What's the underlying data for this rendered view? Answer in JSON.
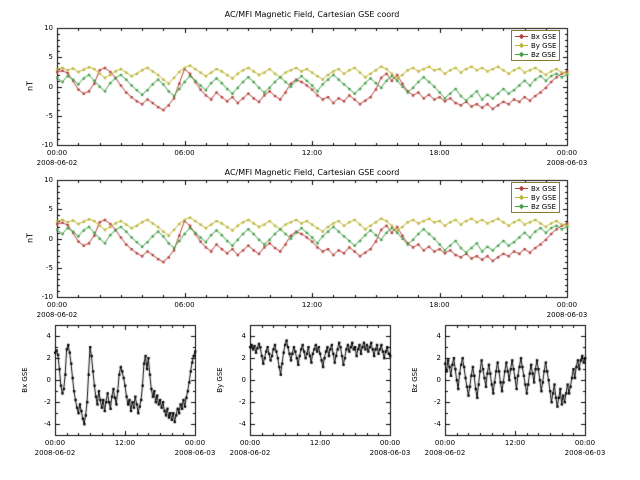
{
  "series": {
    "time": {
      "start_hours": 0,
      "end_hours": 24,
      "step_hours": 0.25
    },
    "bx": [
      2.5,
      2.7,
      2.3,
      1.0,
      -0.5,
      -1.2,
      -0.8,
      0.5,
      2.8,
      3.2,
      2.5,
      1.5,
      0.2,
      -1.0,
      -1.8,
      -2.5,
      -3.0,
      -2.2,
      -2.8,
      -3.5,
      -4.0,
      -3.2,
      -2.0,
      0.5,
      3.0,
      2.2,
      0.8,
      -0.5,
      -1.5,
      -2.2,
      -1.0,
      -1.8,
      -2.5,
      -1.8,
      -2.8,
      -2.0,
      -1.2,
      -2.0,
      -2.6,
      -1.5,
      -0.8,
      -1.6,
      -2.2,
      -1.0,
      0.5,
      1.2,
      0.8,
      0.2,
      -0.5,
      -1.5,
      -2.2,
      -1.8,
      -2.8,
      -2.0,
      -2.5,
      -1.5,
      -2.2,
      -3.0,
      -2.4,
      -1.8,
      -0.5,
      1.5,
      2.2,
      1.0,
      2.0,
      0.5,
      -0.8,
      -1.5,
      -1.0,
      -2.0,
      -1.4,
      -2.2,
      -1.8,
      -2.5,
      -2.0,
      -2.8,
      -3.2,
      -2.6,
      -3.4,
      -3.0,
      -3.6,
      -3.0,
      -3.8,
      -3.2,
      -2.6,
      -3.0,
      -2.2,
      -2.6,
      -1.8,
      -2.4,
      -1.6,
      -1.0,
      -0.2,
      0.8,
      1.6,
      2.2,
      2.6
    ],
    "by": [
      3.0,
      3.2,
      2.8,
      3.1,
      2.5,
      2.9,
      3.3,
      3.0,
      2.2,
      1.5,
      2.0,
      2.6,
      3.0,
      2.4,
      1.8,
      2.2,
      2.8,
      3.2,
      2.6,
      2.0,
      1.2,
      0.5,
      1.5,
      2.5,
      3.2,
      3.6,
      3.0,
      2.4,
      1.8,
      2.4,
      3.0,
      2.6,
      2.0,
      1.4,
      2.2,
      2.8,
      3.2,
      2.6,
      2.0,
      2.4,
      3.0,
      2.2,
      1.6,
      2.4,
      2.8,
      3.2,
      2.6,
      3.0,
      2.4,
      1.8,
      1.2,
      2.0,
      2.6,
      3.0,
      2.2,
      2.8,
      3.2,
      2.4,
      1.6,
      2.2,
      2.8,
      3.4,
      3.0,
      2.2,
      1.4,
      2.0,
      2.8,
      3.2,
      2.6,
      3.0,
      3.4,
      2.8,
      3.0,
      2.2,
      2.8,
      3.2,
      2.4,
      3.0,
      3.4,
      2.8,
      3.2,
      2.6,
      3.0,
      3.4,
      2.8,
      2.2,
      2.8,
      3.2,
      2.4,
      2.8,
      3.2,
      2.6,
      2.0,
      2.6,
      3.0,
      2.4,
      2.2
    ],
    "bz": [
      1.5,
      0.8,
      1.8,
      1.2,
      0.4,
      1.4,
      2.0,
      1.0,
      0.0,
      -0.8,
      0.6,
      1.4,
      2.0,
      1.2,
      0.2,
      -0.6,
      -1.4,
      -0.6,
      0.4,
      1.2,
      0.4,
      -0.8,
      -1.6,
      -0.4,
      0.8,
      1.8,
      1.0,
      0.2,
      -0.6,
      0.6,
      1.4,
      0.6,
      -0.4,
      -1.2,
      -0.2,
      0.8,
      1.6,
      0.8,
      -0.2,
      -1.0,
      -0.2,
      0.8,
      1.6,
      0.8,
      0.0,
      1.0,
      1.8,
      1.0,
      0.2,
      -0.8,
      0.4,
      1.2,
      2.0,
      1.2,
      0.4,
      -0.4,
      -1.2,
      -0.4,
      0.6,
      1.4,
      0.6,
      -0.2,
      1.0,
      1.8,
      1.0,
      0.0,
      -1.0,
      -0.2,
      0.8,
      1.6,
      0.8,
      0.0,
      -1.0,
      -2.0,
      -1.2,
      -0.4,
      -1.6,
      -2.4,
      -1.6,
      -0.8,
      -2.2,
      -1.4,
      -2.0,
      -1.2,
      -0.4,
      -1.2,
      -0.6,
      0.2,
      1.0,
      0.2,
      1.2,
      1.8,
      1.0,
      1.8,
      2.2,
      1.6,
      2.0
    ]
  },
  "chart_data": [
    {
      "id": "overview-1",
      "type": "line",
      "title": "AC/MFI  Magnetic Field, Cartesian GSE coord",
      "ylabel": "nT",
      "ylim": [
        -10,
        10
      ],
      "yticks": [
        10,
        5,
        0,
        -5,
        -10
      ],
      "xlim_hours": [
        0,
        24
      ],
      "xticks": [
        {
          "hour": 0,
          "label": "00:00",
          "date": "2008-06-02"
        },
        {
          "hour": 6,
          "label": "06:00"
        },
        {
          "hour": 12,
          "label": "12:00"
        },
        {
          "hour": 18,
          "label": "18:00"
        },
        {
          "hour": 24,
          "label": "00:00",
          "date": "2008-06-03"
        }
      ],
      "series": [
        {
          "key": "bx",
          "label": "Bx  GSE",
          "color": "#b5413d"
        },
        {
          "key": "by",
          "label": "By  GSE",
          "color": "#bdb534"
        },
        {
          "key": "bz",
          "label": "Bz  GSE",
          "color": "#44a049"
        }
      ],
      "legend_position": "top-right",
      "grid": false
    },
    {
      "id": "overview-2",
      "type": "line",
      "title": "AC/MFI  Magnetic Field, Cartesian GSE coord",
      "ylabel": "nT",
      "ylim": [
        -10,
        10
      ],
      "yticks": [
        10,
        5,
        0,
        -5,
        -10
      ],
      "xlim_hours": [
        0,
        24
      ],
      "xticks": [
        {
          "hour": 0,
          "label": "00:00",
          "date": "2008-06-02"
        },
        {
          "hour": 6,
          "label": "06:00"
        },
        {
          "hour": 12,
          "label": "12:00"
        },
        {
          "hour": 18,
          "label": "18:00"
        },
        {
          "hour": 24,
          "label": "00:00",
          "date": "2008-06-03"
        }
      ],
      "series": [
        {
          "key": "bx",
          "label": "Bx  GSE",
          "color": "#b5413d"
        },
        {
          "key": "by",
          "label": "By  GSE",
          "color": "#bdb534"
        },
        {
          "key": "bz",
          "label": "Bz  GSE",
          "color": "#44a049"
        }
      ],
      "legend_position": "top-right",
      "grid": false
    },
    {
      "id": "bx-panel",
      "type": "line",
      "title": "",
      "ylabel": "Bx GSE",
      "ylim": [
        -5,
        5
      ],
      "yticks": [
        4,
        2,
        0,
        -2,
        -4
      ],
      "xlim_hours": [
        0,
        24
      ],
      "xticks": [
        {
          "hour": 0,
          "label": "00:00",
          "date": "2008-06-02"
        },
        {
          "hour": 12,
          "label": "12:00"
        },
        {
          "hour": 24,
          "label": "00:00",
          "date": "2008-06-03"
        }
      ],
      "series": [
        {
          "key": "bx",
          "label": "Bx GSE",
          "color": "#000000"
        }
      ],
      "legend_position": null,
      "grid": false
    },
    {
      "id": "by-panel",
      "type": "line",
      "title": "",
      "ylabel": "By GSE",
      "ylim": [
        -5,
        5
      ],
      "yticks": [
        4,
        2,
        0,
        -2,
        -4
      ],
      "xlim_hours": [
        0,
        24
      ],
      "xticks": [
        {
          "hour": 0,
          "label": "00:00",
          "date": "2008-06-02"
        },
        {
          "hour": 12,
          "label": "12:00"
        },
        {
          "hour": 24,
          "label": "00:00",
          "date": "2008-06-03"
        }
      ],
      "series": [
        {
          "key": "by",
          "label": "By GSE",
          "color": "#000000"
        }
      ],
      "legend_position": null,
      "grid": false
    },
    {
      "id": "bz-panel",
      "type": "line",
      "title": "",
      "ylabel": "Bz GSE",
      "ylim": [
        -5,
        5
      ],
      "yticks": [
        4,
        2,
        0,
        -2,
        -4
      ],
      "xlim_hours": [
        0,
        24
      ],
      "xticks": [
        {
          "hour": 0,
          "label": "00:00",
          "date": "2008-06-02"
        },
        {
          "hour": 12,
          "label": "12:00"
        },
        {
          "hour": 24,
          "label": "00:00",
          "date": "2008-06-03"
        }
      ],
      "series": [
        {
          "key": "bz",
          "label": "Bz GSE",
          "color": "#000000"
        }
      ],
      "legend_position": null,
      "grid": false
    }
  ]
}
